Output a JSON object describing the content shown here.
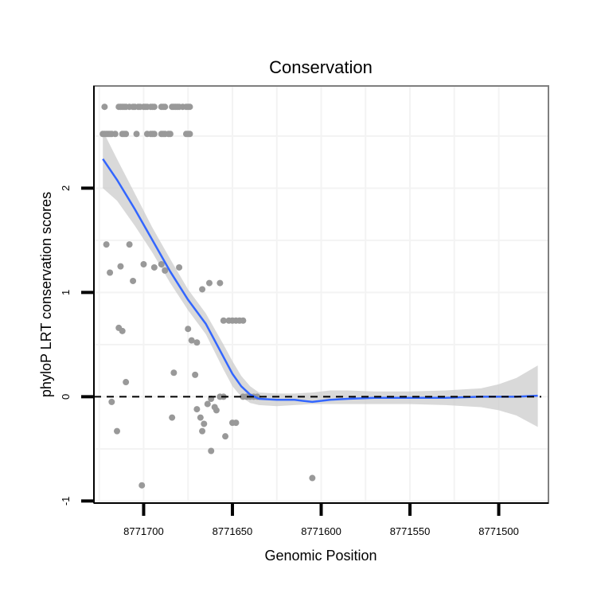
{
  "chart_data": {
    "type": "scatter",
    "title": "Conservation",
    "xlabel": "Genomic Position",
    "ylabel": "phyloP LRT conservation scores",
    "x_reversed": true,
    "xlim": [
      8771728,
      8771472
    ],
    "ylim": [
      -1.02,
      2.98
    ],
    "x_ticks": [
      {
        "value": 8771700,
        "label": "8771700"
      },
      {
        "value": 8771650,
        "label": "8771650"
      },
      {
        "value": 8771600,
        "label": "8771600"
      },
      {
        "value": 8771550,
        "label": "8771550"
      },
      {
        "value": 8771500,
        "label": "8771500"
      }
    ],
    "y_ticks": [
      {
        "value": -1,
        "label": "-1"
      },
      {
        "value": 0,
        "label": "0"
      },
      {
        "value": 1,
        "label": "1"
      },
      {
        "value": 2,
        "label": "2"
      }
    ],
    "reference_line": {
      "y": 0,
      "style": "dashed",
      "color": "#000000"
    },
    "colors": {
      "points": "#999999",
      "smooth": "#3366ff",
      "ribbon": "#cccccc",
      "panel_border": "#7f7f7f",
      "grid": "#f3f3f3"
    },
    "points": [
      {
        "x": 8771722,
        "y": 2.78
      },
      {
        "x": 8771714,
        "y": 2.78
      },
      {
        "x": 8771713,
        "y": 2.78
      },
      {
        "x": 8771712,
        "y": 2.78
      },
      {
        "x": 8771711,
        "y": 2.78
      },
      {
        "x": 8771710,
        "y": 2.78
      },
      {
        "x": 8771708,
        "y": 2.78
      },
      {
        "x": 8771706,
        "y": 2.78
      },
      {
        "x": 8771705,
        "y": 2.78
      },
      {
        "x": 8771703,
        "y": 2.78
      },
      {
        "x": 8771702,
        "y": 2.78
      },
      {
        "x": 8771700,
        "y": 2.78
      },
      {
        "x": 8771699,
        "y": 2.78
      },
      {
        "x": 8771698,
        "y": 2.78
      },
      {
        "x": 8771696,
        "y": 2.78
      },
      {
        "x": 8771695,
        "y": 2.78
      },
      {
        "x": 8771694,
        "y": 2.78
      },
      {
        "x": 8771690,
        "y": 2.78
      },
      {
        "x": 8771689,
        "y": 2.78
      },
      {
        "x": 8771688,
        "y": 2.78
      },
      {
        "x": 8771684,
        "y": 2.78
      },
      {
        "x": 8771683,
        "y": 2.78
      },
      {
        "x": 8771682,
        "y": 2.78
      },
      {
        "x": 8771681,
        "y": 2.78
      },
      {
        "x": 8771680,
        "y": 2.78
      },
      {
        "x": 8771678,
        "y": 2.78
      },
      {
        "x": 8771676,
        "y": 2.78
      },
      {
        "x": 8771675,
        "y": 2.78
      },
      {
        "x": 8771674,
        "y": 2.78
      },
      {
        "x": 8771723,
        "y": 2.52
      },
      {
        "x": 8771722,
        "y": 2.52
      },
      {
        "x": 8771721,
        "y": 2.52
      },
      {
        "x": 8771720,
        "y": 2.52
      },
      {
        "x": 8771719,
        "y": 2.52
      },
      {
        "x": 8771718,
        "y": 2.52
      },
      {
        "x": 8771716,
        "y": 2.52
      },
      {
        "x": 8771712,
        "y": 2.52
      },
      {
        "x": 8771711,
        "y": 2.52
      },
      {
        "x": 8771710,
        "y": 2.52
      },
      {
        "x": 8771704,
        "y": 2.52
      },
      {
        "x": 8771698,
        "y": 2.52
      },
      {
        "x": 8771696,
        "y": 2.52
      },
      {
        "x": 8771695,
        "y": 2.52
      },
      {
        "x": 8771694,
        "y": 2.52
      },
      {
        "x": 8771690,
        "y": 2.52
      },
      {
        "x": 8771689,
        "y": 2.52
      },
      {
        "x": 8771688,
        "y": 2.52
      },
      {
        "x": 8771686,
        "y": 2.52
      },
      {
        "x": 8771685,
        "y": 2.52
      },
      {
        "x": 8771676,
        "y": 2.52
      },
      {
        "x": 8771675,
        "y": 2.52
      },
      {
        "x": 8771674,
        "y": 2.52
      },
      {
        "x": 8771721,
        "y": 1.46
      },
      {
        "x": 8771708,
        "y": 1.46
      },
      {
        "x": 8771719,
        "y": 1.19
      },
      {
        "x": 8771713,
        "y": 1.25
      },
      {
        "x": 8771706,
        "y": 1.11
      },
      {
        "x": 8771700,
        "y": 1.27
      },
      {
        "x": 8771694,
        "y": 1.24
      },
      {
        "x": 8771690,
        "y": 1.27
      },
      {
        "x": 8771688,
        "y": 1.21
      },
      {
        "x": 8771680,
        "y": 1.24
      },
      {
        "x": 8771667,
        "y": 1.03
      },
      {
        "x": 8771663,
        "y": 1.09
      },
      {
        "x": 8771657,
        "y": 1.09
      },
      {
        "x": 8771655,
        "y": 0.73
      },
      {
        "x": 8771652,
        "y": 0.73
      },
      {
        "x": 8771650,
        "y": 0.73
      },
      {
        "x": 8771648,
        "y": 0.73
      },
      {
        "x": 8771646,
        "y": 0.73
      },
      {
        "x": 8771644,
        "y": 0.73
      },
      {
        "x": 8771714,
        "y": 0.66
      },
      {
        "x": 8771712,
        "y": 0.63
      },
      {
        "x": 8771675,
        "y": 0.65
      },
      {
        "x": 8771673,
        "y": 0.54
      },
      {
        "x": 8771670,
        "y": 0.52
      },
      {
        "x": 8771710,
        "y": 0.14
      },
      {
        "x": 8771683,
        "y": 0.23
      },
      {
        "x": 8771671,
        "y": 0.21
      },
      {
        "x": 8771718,
        "y": -0.05
      },
      {
        "x": 8771715,
        "y": -0.33
      },
      {
        "x": 8771684,
        "y": -0.2
      },
      {
        "x": 8771670,
        "y": -0.12
      },
      {
        "x": 8771668,
        "y": -0.2
      },
      {
        "x": 8771666,
        "y": -0.26
      },
      {
        "x": 8771664,
        "y": -0.07
      },
      {
        "x": 8771662,
        "y": -0.02
      },
      {
        "x": 8771660,
        "y": -0.1
      },
      {
        "x": 8771659,
        "y": -0.13
      },
      {
        "x": 8771657,
        "y": 0.0
      },
      {
        "x": 8771655,
        "y": 0.0
      },
      {
        "x": 8771667,
        "y": -0.33
      },
      {
        "x": 8771662,
        "y": -0.52
      },
      {
        "x": 8771654,
        "y": -0.38
      },
      {
        "x": 8771650,
        "y": -0.25
      },
      {
        "x": 8771648,
        "y": -0.25
      },
      {
        "x": 8771644,
        "y": 0.0
      },
      {
        "x": 8771642,
        "y": 0.0
      },
      {
        "x": 8771640,
        "y": 0.0
      },
      {
        "x": 8771638,
        "y": 0.0
      },
      {
        "x": 8771636,
        "y": 0.0
      },
      {
        "x": 8771605,
        "y": -0.78
      },
      {
        "x": 8771701,
        "y": -0.85
      }
    ],
    "smooth": {
      "x": [
        8771723,
        8771715,
        8771705,
        8771695,
        8771685,
        8771675,
        8771665,
        8771655,
        8771650,
        8771645,
        8771640,
        8771635,
        8771625,
        8771615,
        8771605,
        8771595,
        8771585,
        8771570,
        8771550,
        8771530,
        8771510,
        8771500,
        8771490,
        8771478
      ],
      "y": [
        2.28,
        2.08,
        1.8,
        1.5,
        1.2,
        0.93,
        0.7,
        0.38,
        0.22,
        0.1,
        0.02,
        -0.02,
        -0.03,
        -0.03,
        -0.05,
        -0.03,
        -0.02,
        -0.01,
        -0.01,
        -0.01,
        0.0,
        0.0,
        0.0,
        0.01
      ],
      "upper": [
        2.55,
        2.28,
        1.95,
        1.62,
        1.32,
        1.03,
        0.8,
        0.5,
        0.34,
        0.2,
        0.1,
        0.04,
        0.03,
        0.03,
        0.04,
        0.06,
        0.06,
        0.05,
        0.05,
        0.06,
        0.08,
        0.12,
        0.18,
        0.3
      ],
      "lower": [
        2.0,
        1.88,
        1.64,
        1.38,
        1.09,
        0.83,
        0.6,
        0.26,
        0.1,
        0.0,
        -0.06,
        -0.08,
        -0.09,
        -0.08,
        -0.07,
        -0.07,
        -0.07,
        -0.07,
        -0.07,
        -0.08,
        -0.1,
        -0.13,
        -0.18,
        -0.29
      ]
    }
  }
}
